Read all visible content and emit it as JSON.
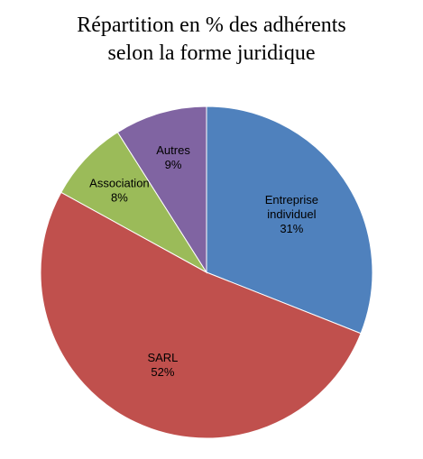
{
  "chart_data": {
    "type": "pie",
    "title_lines": [
      "Répartition en % des adhérents",
      "selon la forme juridique"
    ],
    "slices": [
      {
        "label_lines": [
          "Entreprise",
          "individuel"
        ],
        "value": 31,
        "value_label": "31%",
        "color": "#4F81BD"
      },
      {
        "label_lines": [
          "SARL"
        ],
        "value": 52,
        "value_label": "52%",
        "color": "#C0504D"
      },
      {
        "label_lines": [
          "Association"
        ],
        "value": 8,
        "value_label": "8%",
        "color": "#9BBB59"
      },
      {
        "label_lines": [
          "Autres"
        ],
        "value": 9,
        "value_label": "9%",
        "color": "#8064A2"
      }
    ],
    "start": "12 o'clock",
    "direction": "clockwise",
    "legend": "none"
  }
}
